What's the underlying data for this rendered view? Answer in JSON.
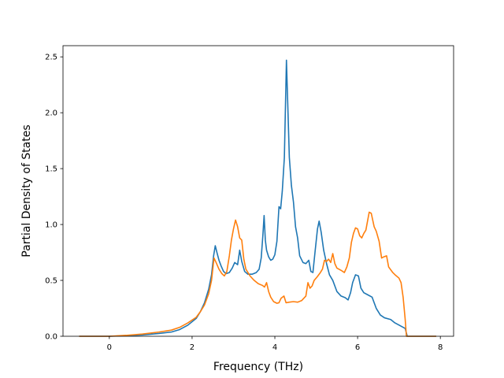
{
  "chart_data": {
    "type": "line",
    "title": "",
    "xlabel": "Frequency (THz)",
    "ylabel": "Partial Density of States",
    "xlim": [
      -1.12,
      8.32
    ],
    "ylim": [
      0.0,
      2.6
    ],
    "xticks": [
      0,
      2,
      4,
      6,
      8
    ],
    "xtick_labels": [
      "0",
      "2",
      "4",
      "6",
      "8"
    ],
    "yticks": [
      0.0,
      0.5,
      1.0,
      1.5,
      2.0,
      2.5
    ],
    "ytick_labels": [
      "0.0",
      "0.5",
      "1.0",
      "1.5",
      "2.0",
      "2.5"
    ],
    "grid": false,
    "legend": "none",
    "series": [
      {
        "color": "#1f77b4",
        "points": [
          [
            -0.73,
            0.0
          ],
          [
            0.0,
            0.0
          ],
          [
            0.4,
            0.005
          ],
          [
            0.8,
            0.012
          ],
          [
            1.2,
            0.025
          ],
          [
            1.5,
            0.038
          ],
          [
            1.7,
            0.06
          ],
          [
            1.9,
            0.1
          ],
          [
            2.1,
            0.16
          ],
          [
            2.2,
            0.22
          ],
          [
            2.3,
            0.3
          ],
          [
            2.4,
            0.42
          ],
          [
            2.47,
            0.55
          ],
          [
            2.52,
            0.72
          ],
          [
            2.56,
            0.81
          ],
          [
            2.6,
            0.75
          ],
          [
            2.65,
            0.68
          ],
          [
            2.7,
            0.63
          ],
          [
            2.76,
            0.58
          ],
          [
            2.82,
            0.56
          ],
          [
            2.9,
            0.57
          ],
          [
            2.97,
            0.61
          ],
          [
            3.03,
            0.66
          ],
          [
            3.1,
            0.64
          ],
          [
            3.15,
            0.77
          ],
          [
            3.2,
            0.67
          ],
          [
            3.27,
            0.58
          ],
          [
            3.35,
            0.555
          ],
          [
            3.45,
            0.555
          ],
          [
            3.55,
            0.57
          ],
          [
            3.62,
            0.6
          ],
          [
            3.67,
            0.7
          ],
          [
            3.71,
            0.9
          ],
          [
            3.74,
            1.08
          ],
          [
            3.77,
            0.86
          ],
          [
            3.8,
            0.77
          ],
          [
            3.85,
            0.71
          ],
          [
            3.9,
            0.68
          ],
          [
            3.95,
            0.69
          ],
          [
            4.0,
            0.73
          ],
          [
            4.05,
            0.85
          ],
          [
            4.1,
            1.16
          ],
          [
            4.14,
            1.14
          ],
          [
            4.18,
            1.3
          ],
          [
            4.23,
            1.6
          ],
          [
            4.28,
            2.47
          ],
          [
            4.31,
            2.1
          ],
          [
            4.35,
            1.6
          ],
          [
            4.4,
            1.35
          ],
          [
            4.45,
            1.2
          ],
          [
            4.5,
            0.98
          ],
          [
            4.55,
            0.88
          ],
          [
            4.6,
            0.72
          ],
          [
            4.68,
            0.66
          ],
          [
            4.75,
            0.65
          ],
          [
            4.82,
            0.68
          ],
          [
            4.87,
            0.58
          ],
          [
            4.92,
            0.57
          ],
          [
            4.97,
            0.75
          ],
          [
            5.03,
            0.96
          ],
          [
            5.07,
            1.03
          ],
          [
            5.12,
            0.93
          ],
          [
            5.18,
            0.77
          ],
          [
            5.25,
            0.65
          ],
          [
            5.32,
            0.55
          ],
          [
            5.4,
            0.5
          ],
          [
            5.5,
            0.4
          ],
          [
            5.6,
            0.36
          ],
          [
            5.7,
            0.345
          ],
          [
            5.77,
            0.325
          ],
          [
            5.83,
            0.39
          ],
          [
            5.88,
            0.48
          ],
          [
            5.95,
            0.55
          ],
          [
            6.02,
            0.54
          ],
          [
            6.08,
            0.43
          ],
          [
            6.15,
            0.39
          ],
          [
            6.25,
            0.37
          ],
          [
            6.35,
            0.35
          ],
          [
            6.45,
            0.25
          ],
          [
            6.55,
            0.19
          ],
          [
            6.65,
            0.165
          ],
          [
            6.8,
            0.15
          ],
          [
            6.9,
            0.12
          ],
          [
            7.05,
            0.09
          ],
          [
            7.15,
            0.07
          ],
          [
            7.2,
            0.0
          ],
          [
            7.9,
            0.0
          ]
        ]
      },
      {
        "color": "#ff7f0e",
        "points": [
          [
            -0.73,
            0.0
          ],
          [
            0.0,
            0.0
          ],
          [
            0.4,
            0.008
          ],
          [
            0.8,
            0.02
          ],
          [
            1.2,
            0.038
          ],
          [
            1.5,
            0.055
          ],
          [
            1.7,
            0.08
          ],
          [
            1.9,
            0.12
          ],
          [
            2.1,
            0.17
          ],
          [
            2.2,
            0.22
          ],
          [
            2.3,
            0.28
          ],
          [
            2.4,
            0.38
          ],
          [
            2.47,
            0.5
          ],
          [
            2.53,
            0.7
          ],
          [
            2.58,
            0.66
          ],
          [
            2.65,
            0.6
          ],
          [
            2.72,
            0.56
          ],
          [
            2.78,
            0.54
          ],
          [
            2.84,
            0.58
          ],
          [
            2.9,
            0.72
          ],
          [
            2.95,
            0.86
          ],
          [
            3.0,
            0.96
          ],
          [
            3.05,
            1.04
          ],
          [
            3.1,
            0.98
          ],
          [
            3.15,
            0.88
          ],
          [
            3.2,
            0.86
          ],
          [
            3.25,
            0.69
          ],
          [
            3.3,
            0.6
          ],
          [
            3.4,
            0.54
          ],
          [
            3.5,
            0.5
          ],
          [
            3.6,
            0.47
          ],
          [
            3.7,
            0.455
          ],
          [
            3.75,
            0.44
          ],
          [
            3.8,
            0.48
          ],
          [
            3.85,
            0.4
          ],
          [
            3.9,
            0.35
          ],
          [
            3.97,
            0.31
          ],
          [
            4.05,
            0.295
          ],
          [
            4.1,
            0.3
          ],
          [
            4.15,
            0.34
          ],
          [
            4.22,
            0.36
          ],
          [
            4.27,
            0.3
          ],
          [
            4.35,
            0.305
          ],
          [
            4.45,
            0.31
          ],
          [
            4.55,
            0.305
          ],
          [
            4.65,
            0.32
          ],
          [
            4.75,
            0.36
          ],
          [
            4.8,
            0.48
          ],
          [
            4.85,
            0.43
          ],
          [
            4.9,
            0.45
          ],
          [
            4.95,
            0.5
          ],
          [
            5.02,
            0.53
          ],
          [
            5.1,
            0.57
          ],
          [
            5.15,
            0.6
          ],
          [
            5.2,
            0.68
          ],
          [
            5.25,
            0.67
          ],
          [
            5.3,
            0.69
          ],
          [
            5.35,
            0.66
          ],
          [
            5.4,
            0.74
          ],
          [
            5.45,
            0.65
          ],
          [
            5.5,
            0.61
          ],
          [
            5.6,
            0.59
          ],
          [
            5.68,
            0.57
          ],
          [
            5.74,
            0.62
          ],
          [
            5.8,
            0.7
          ],
          [
            5.85,
            0.84
          ],
          [
            5.9,
            0.92
          ],
          [
            5.95,
            0.97
          ],
          [
            6.0,
            0.96
          ],
          [
            6.05,
            0.9
          ],
          [
            6.1,
            0.88
          ],
          [
            6.15,
            0.92
          ],
          [
            6.2,
            0.95
          ],
          [
            6.28,
            1.11
          ],
          [
            6.33,
            1.1
          ],
          [
            6.4,
            0.98
          ],
          [
            6.45,
            0.94
          ],
          [
            6.52,
            0.85
          ],
          [
            6.58,
            0.7
          ],
          [
            6.63,
            0.71
          ],
          [
            6.7,
            0.72
          ],
          [
            6.75,
            0.62
          ],
          [
            6.85,
            0.57
          ],
          [
            6.92,
            0.545
          ],
          [
            7.0,
            0.52
          ],
          [
            7.05,
            0.48
          ],
          [
            7.1,
            0.35
          ],
          [
            7.15,
            0.15
          ],
          [
            7.18,
            0.0
          ],
          [
            7.9,
            0.0
          ]
        ]
      }
    ]
  }
}
